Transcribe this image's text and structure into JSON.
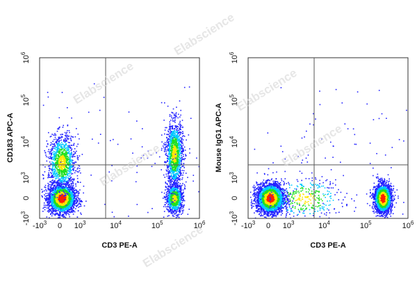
{
  "watermark": "Elabscience",
  "colors": {
    "density_low": "#2222ff",
    "density_mid_low": "#00c8ff",
    "density_mid": "#20e020",
    "density_mid_high": "#ffe600",
    "density_high": "#ff2000",
    "gate_line": "#555555",
    "frame": "#333333"
  },
  "chart_data": [
    {
      "type": "scatter",
      "title": "",
      "xlabel": "CD3 PE-A",
      "ylabel": "CD183 APC-A",
      "x_scale": "biexponential",
      "y_scale": "biexponential",
      "x_ticks": [
        "-10^3",
        "0",
        "10^3",
        "10^4",
        "10^5",
        "10^6"
      ],
      "y_ticks": [
        "-10^3",
        "0",
        "10^3",
        "10^4",
        "10^5",
        "10^6"
      ],
      "x_gate": 3000,
      "y_gate": 1000,
      "populations": [
        {
          "name": "",
          "x_center": 50,
          "y_center": 0,
          "events": 2600
        },
        {
          "name": "",
          "x_center": 50,
          "y_center": 3000,
          "events": 1100
        },
        {
          "name": "",
          "x_center": 250000,
          "y_center": 0,
          "events": 900
        },
        {
          "name": "",
          "x_center": 250000,
          "y_center": 5000,
          "events": 1300
        }
      ],
      "grid": false
    },
    {
      "type": "scatter",
      "title": "",
      "xlabel": "CD3 PE-A",
      "ylabel": "Mouse IgG1 APC-A",
      "x_scale": "biexponential",
      "y_scale": "biexponential",
      "x_ticks": [
        "-10^3",
        "0",
        "10^3",
        "10^4",
        "10^5",
        "10^6"
      ],
      "y_ticks": [
        "-10^3",
        "0",
        "10^3",
        "10^4",
        "10^5",
        "10^6"
      ],
      "x_gate": 3000,
      "y_gate": 1000,
      "populations": [
        {
          "name": "",
          "x_center": 50,
          "y_center": 0,
          "events": 3000
        },
        {
          "name": "",
          "x_center": 250000,
          "y_center": 0,
          "events": 2200
        },
        {
          "name": "",
          "x_center": 3000,
          "y_center": 0,
          "events": 350
        }
      ],
      "grid": false
    }
  ]
}
